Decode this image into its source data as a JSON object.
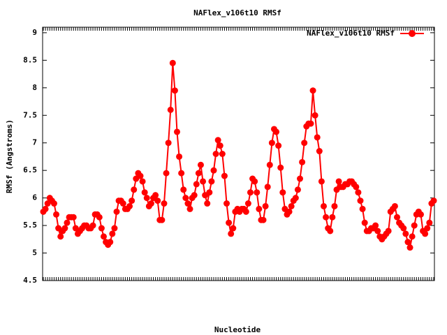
{
  "chart_data": {
    "type": "line",
    "title": "NAFlex_v106t10 RMSf",
    "x_label": "Nucleotide",
    "y_label": "RMSf (Angstroms)",
    "legend": "top-right",
    "categories": [
      null,
      null,
      null,
      null,
      null,
      null,
      null,
      null,
      null,
      null,
      null,
      null,
      null,
      null,
      null,
      null,
      null,
      null,
      null,
      null,
      null,
      null,
      null,
      null,
      null,
      null,
      null,
      null,
      null,
      null,
      null,
      null,
      null,
      null,
      null,
      null,
      null,
      null,
      null,
      null,
      null,
      null,
      null,
      null,
      null,
      null,
      null,
      null,
      null,
      null,
      null,
      null,
      null,
      null,
      null,
      null,
      null,
      null,
      null,
      null,
      null,
      null,
      null,
      null,
      null,
      null,
      null,
      null,
      null,
      null,
      null,
      null,
      null,
      null,
      null,
      null,
      null,
      null,
      null,
      null,
      null,
      null,
      null,
      null,
      null,
      null,
      null,
      null,
      null,
      null,
      null,
      null,
      null,
      null,
      null,
      null,
      null,
      null,
      null,
      null,
      null,
      null,
      null,
      null,
      null,
      null,
      null,
      null,
      null,
      null,
      null,
      null,
      null,
      null,
      null,
      null,
      null,
      null,
      null,
      null,
      null,
      null,
      null,
      null,
      null,
      null,
      null,
      null,
      null,
      null,
      null,
      null,
      null,
      null,
      null,
      null,
      null,
      null,
      null,
      null,
      null,
      null,
      null,
      null,
      null,
      null,
      null,
      null,
      null,
      null,
      null,
      null,
      null,
      null,
      null,
      null,
      null,
      null,
      null,
      null,
      null,
      null,
      null,
      null,
      null,
      null,
      null,
      null,
      null,
      null,
      null,
      null,
      null,
      null,
      null,
      null,
      null,
      null,
      null,
      null,
      null,
      null
    ],
    "series": [
      {
        "name": "NAFlex_v106t10 RMSf",
        "color": "#ff0000",
        "values": [
          5.75,
          5.8,
          5.9,
          6.0,
          5.95,
          5.9,
          5.7,
          5.45,
          5.3,
          5.4,
          5.45,
          5.55,
          5.65,
          5.65,
          5.65,
          5.45,
          5.35,
          5.4,
          5.45,
          5.5,
          5.5,
          5.45,
          5.45,
          5.5,
          5.7,
          5.7,
          5.65,
          5.45,
          5.3,
          5.2,
          5.15,
          5.2,
          5.35,
          5.45,
          5.75,
          5.95,
          5.95,
          5.9,
          5.8,
          5.8,
          5.85,
          5.95,
          6.15,
          6.35,
          6.45,
          6.4,
          6.3,
          6.1,
          6.0,
          5.85,
          5.9,
          6.0,
          6.05,
          5.95,
          5.6,
          5.6,
          5.9,
          6.45,
          7.0,
          7.6,
          8.45,
          7.95,
          7.2,
          6.75,
          6.45,
          6.15,
          6.0,
          5.9,
          5.8,
          6.0,
          6.05,
          6.25,
          6.45,
          6.6,
          6.3,
          6.05,
          5.9,
          6.1,
          6.3,
          6.5,
          6.8,
          7.05,
          6.95,
          6.8,
          6.4,
          5.9,
          5.55,
          5.35,
          5.45,
          5.75,
          5.8,
          5.75,
          5.8,
          5.8,
          5.75,
          5.9,
          6.1,
          6.35,
          6.3,
          6.1,
          5.8,
          5.6,
          5.6,
          5.85,
          6.2,
          6.6,
          7.0,
          7.25,
          7.2,
          6.95,
          6.55,
          6.1,
          5.8,
          5.7,
          5.75,
          5.85,
          5.95,
          6.0,
          6.15,
          6.35,
          6.65,
          7.0,
          7.3,
          7.35,
          7.35,
          7.95,
          7.5,
          7.1,
          6.85,
          6.3,
          5.85,
          5.65,
          5.45,
          5.4,
          5.65,
          5.85,
          6.15,
          6.3,
          6.2,
          6.2,
          6.25,
          6.25,
          6.3,
          6.3,
          6.25,
          6.2,
          6.1,
          5.95,
          5.8,
          5.55,
          5.4,
          5.4,
          5.45,
          5.45,
          5.5,
          5.4,
          5.3,
          5.25,
          5.3,
          5.35,
          5.4,
          5.75,
          5.8,
          5.85,
          5.65,
          5.55,
          5.5,
          5.45,
          5.35,
          5.2,
          5.1,
          5.3,
          5.5,
          5.7,
          5.75,
          5.7,
          5.4,
          5.35,
          5.45,
          5.55,
          5.9,
          5.95
        ]
      }
    ],
    "ylim": [
      4.5,
      9.1
    ],
    "yticks": [
      4.5,
      5,
      5.5,
      6,
      6.5,
      7,
      7.5,
      8,
      8.5,
      9
    ],
    "grid": false
  }
}
